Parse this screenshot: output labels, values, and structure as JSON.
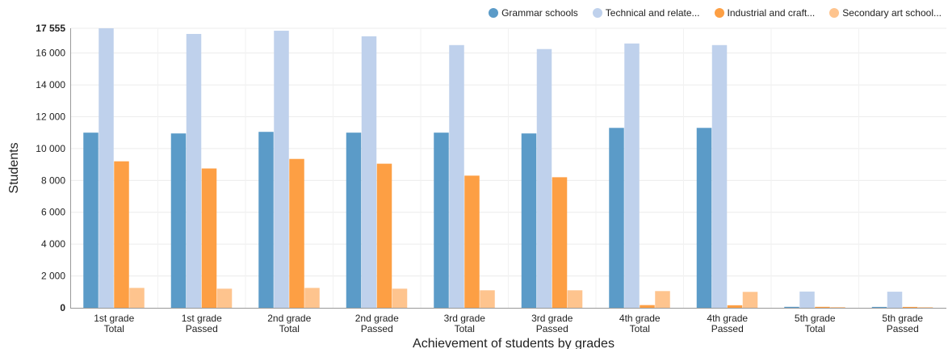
{
  "legend": [
    {
      "label": "Grammar schools",
      "color": "#5b9bc8"
    },
    {
      "label": "Technical and relate...",
      "color": "#bfd1ec"
    },
    {
      "label": "Industrial and craft...",
      "color": "#fd9f44"
    },
    {
      "label": "Secondary art school...",
      "color": "#fec48e"
    }
  ],
  "chart_data": {
    "type": "bar",
    "xlabel": "Achievement of students by grades",
    "ylabel": "Students",
    "ylim": [
      0,
      17555
    ],
    "yticks": [
      {
        "value": 0,
        "label": "0"
      },
      {
        "value": 2000,
        "label": "2 000"
      },
      {
        "value": 4000,
        "label": "4 000"
      },
      {
        "value": 6000,
        "label": "6 000"
      },
      {
        "value": 8000,
        "label": "8 000"
      },
      {
        "value": 10000,
        "label": "10 000"
      },
      {
        "value": 12000,
        "label": "12 000"
      },
      {
        "value": 14000,
        "label": "14 000"
      },
      {
        "value": 16000,
        "label": "16 000"
      },
      {
        "value": 17555,
        "label": "17 555"
      }
    ],
    "categories": [
      [
        "1st grade",
        "Total"
      ],
      [
        "1st grade",
        "Passed"
      ],
      [
        "2nd grade",
        "Total"
      ],
      [
        "2nd grade",
        "Passed"
      ],
      [
        "3rd grade",
        "Total"
      ],
      [
        "3rd grade",
        "Passed"
      ],
      [
        "4th grade",
        "Total"
      ],
      [
        "4th grade",
        "Passed"
      ],
      [
        "5th grade",
        "Total"
      ],
      [
        "5th grade",
        "Passed"
      ]
    ],
    "legend_position": "top-right",
    "grid": true,
    "series": [
      {
        "name": "Grammar schools",
        "color": "#5b9bc8",
        "values": [
          11000,
          10950,
          11050,
          11000,
          11000,
          10950,
          11300,
          11300,
          60,
          55
        ]
      },
      {
        "name": "Technical and relate...",
        "color": "#bfd1ec",
        "values": [
          17555,
          17200,
          17400,
          17050,
          16500,
          16250,
          16600,
          16500,
          1020,
          1010
        ]
      },
      {
        "name": "Industrial and craft...",
        "color": "#fd9f44",
        "values": [
          9200,
          8750,
          9350,
          9050,
          8300,
          8200,
          170,
          160,
          60,
          55
        ]
      },
      {
        "name": "Secondary art school...",
        "color": "#fec48e",
        "values": [
          1250,
          1200,
          1250,
          1200,
          1100,
          1100,
          1050,
          1000,
          45,
          40
        ]
      }
    ]
  }
}
